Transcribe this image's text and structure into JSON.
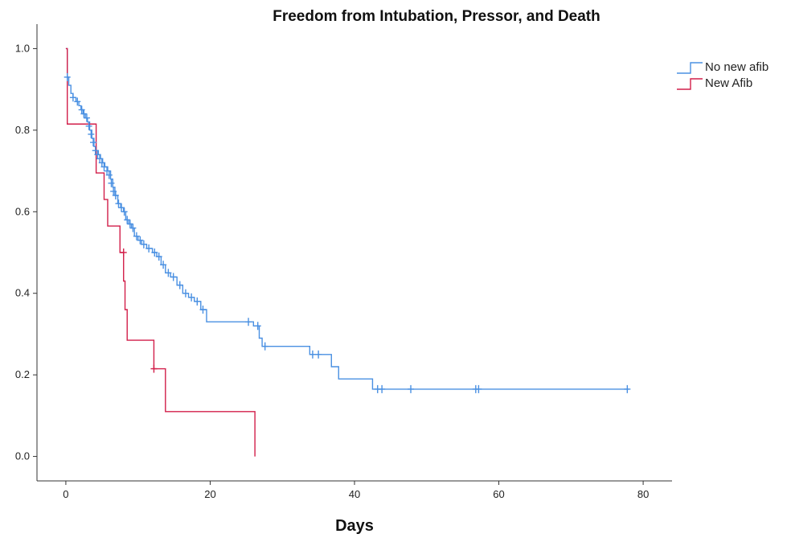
{
  "chart_data": {
    "type": "line",
    "subtype": "kaplan-meier step curves with censor marks",
    "title": "Freedom from Intubation, Pressor, and Death",
    "xlabel": "Days",
    "ylabel": "",
    "xlim": [
      -4,
      84
    ],
    "ylim": [
      -0.06,
      1.06
    ],
    "xticks": [
      0,
      20,
      40,
      60,
      80
    ],
    "xtick_labels": [
      "0",
      "20",
      "40",
      "60",
      "80"
    ],
    "yticks": [
      0.0,
      0.2,
      0.4,
      0.6,
      0.8,
      1.0
    ],
    "ytick_labels": [
      "0.0",
      "0.2",
      "0.4",
      "0.6",
      "0.8",
      "1.0"
    ],
    "grid": false,
    "legend_position": "top-right",
    "series": [
      {
        "name": "No new afib",
        "color": "#4a90e2",
        "steps": [
          [
            0,
            1.0
          ],
          [
            0.2,
            0.93
          ],
          [
            0.4,
            0.91
          ],
          [
            0.7,
            0.89
          ],
          [
            1.0,
            0.88
          ],
          [
            1.4,
            0.87
          ],
          [
            1.8,
            0.86
          ],
          [
            2.1,
            0.85
          ],
          [
            2.4,
            0.84
          ],
          [
            2.7,
            0.83
          ],
          [
            3.0,
            0.82
          ],
          [
            3.3,
            0.8
          ],
          [
            3.6,
            0.78
          ],
          [
            3.9,
            0.76
          ],
          [
            4.2,
            0.75
          ],
          [
            4.5,
            0.74
          ],
          [
            4.8,
            0.73
          ],
          [
            5.1,
            0.72
          ],
          [
            5.4,
            0.71
          ],
          [
            5.8,
            0.7
          ],
          [
            6.2,
            0.68
          ],
          [
            6.5,
            0.66
          ],
          [
            6.8,
            0.64
          ],
          [
            7.2,
            0.62
          ],
          [
            7.6,
            0.61
          ],
          [
            8.0,
            0.6
          ],
          [
            8.3,
            0.58
          ],
          [
            8.7,
            0.57
          ],
          [
            9.1,
            0.56
          ],
          [
            9.5,
            0.54
          ],
          [
            10.0,
            0.53
          ],
          [
            10.5,
            0.52
          ],
          [
            11.2,
            0.51
          ],
          [
            12.0,
            0.5
          ],
          [
            12.6,
            0.49
          ],
          [
            13.2,
            0.47
          ],
          [
            13.8,
            0.45
          ],
          [
            14.5,
            0.44
          ],
          [
            15.4,
            0.42
          ],
          [
            16.2,
            0.4
          ],
          [
            17.0,
            0.39
          ],
          [
            17.8,
            0.38
          ],
          [
            18.7,
            0.36
          ],
          [
            19.5,
            0.33
          ],
          [
            26.0,
            0.32
          ],
          [
            26.8,
            0.29
          ],
          [
            27.2,
            0.27
          ],
          [
            33.8,
            0.25
          ],
          [
            36.8,
            0.22
          ],
          [
            37.8,
            0.19
          ],
          [
            42.5,
            0.165
          ],
          [
            78.0,
            0.165
          ]
        ],
        "censored": [
          [
            0.2,
            0.93
          ],
          [
            1.0,
            0.88
          ],
          [
            1.6,
            0.87
          ],
          [
            2.2,
            0.85
          ],
          [
            2.5,
            0.84
          ],
          [
            2.9,
            0.83
          ],
          [
            3.2,
            0.81
          ],
          [
            3.5,
            0.79
          ],
          [
            3.8,
            0.77
          ],
          [
            4.1,
            0.75
          ],
          [
            4.4,
            0.74
          ],
          [
            4.7,
            0.73
          ],
          [
            5.0,
            0.72
          ],
          [
            5.3,
            0.71
          ],
          [
            5.7,
            0.7
          ],
          [
            6.0,
            0.69
          ],
          [
            6.3,
            0.67
          ],
          [
            6.6,
            0.65
          ],
          [
            6.9,
            0.64
          ],
          [
            7.3,
            0.62
          ],
          [
            7.7,
            0.61
          ],
          [
            8.1,
            0.6
          ],
          [
            8.5,
            0.58
          ],
          [
            8.9,
            0.57
          ],
          [
            9.3,
            0.56
          ],
          [
            9.8,
            0.54
          ],
          [
            10.3,
            0.53
          ],
          [
            10.8,
            0.52
          ],
          [
            11.5,
            0.51
          ],
          [
            12.3,
            0.5
          ],
          [
            12.9,
            0.49
          ],
          [
            13.5,
            0.47
          ],
          [
            14.2,
            0.45
          ],
          [
            14.9,
            0.44
          ],
          [
            15.8,
            0.42
          ],
          [
            16.6,
            0.4
          ],
          [
            17.4,
            0.39
          ],
          [
            18.2,
            0.38
          ],
          [
            19.0,
            0.36
          ],
          [
            25.3,
            0.33
          ],
          [
            26.6,
            0.32
          ],
          [
            27.6,
            0.27
          ],
          [
            34.2,
            0.25
          ],
          [
            35.0,
            0.25
          ],
          [
            43.2,
            0.165
          ],
          [
            43.8,
            0.165
          ],
          [
            47.8,
            0.165
          ],
          [
            56.8,
            0.165
          ],
          [
            57.2,
            0.165
          ],
          [
            77.8,
            0.165
          ]
        ]
      },
      {
        "name": "New Afib",
        "color": "#d21f4a",
        "steps": [
          [
            0,
            1.0
          ],
          [
            0.2,
            0.815
          ],
          [
            4.2,
            0.815
          ],
          [
            4.2,
            0.695
          ],
          [
            5.3,
            0.63
          ],
          [
            5.8,
            0.565
          ],
          [
            7.5,
            0.5
          ],
          [
            8.0,
            0.43
          ],
          [
            8.2,
            0.36
          ],
          [
            8.5,
            0.285
          ],
          [
            12.2,
            0.215
          ],
          [
            13.8,
            0.11
          ],
          [
            26.2,
            0.0
          ]
        ],
        "censored": [
          [
            8.0,
            0.5
          ],
          [
            12.2,
            0.215
          ]
        ]
      }
    ]
  }
}
